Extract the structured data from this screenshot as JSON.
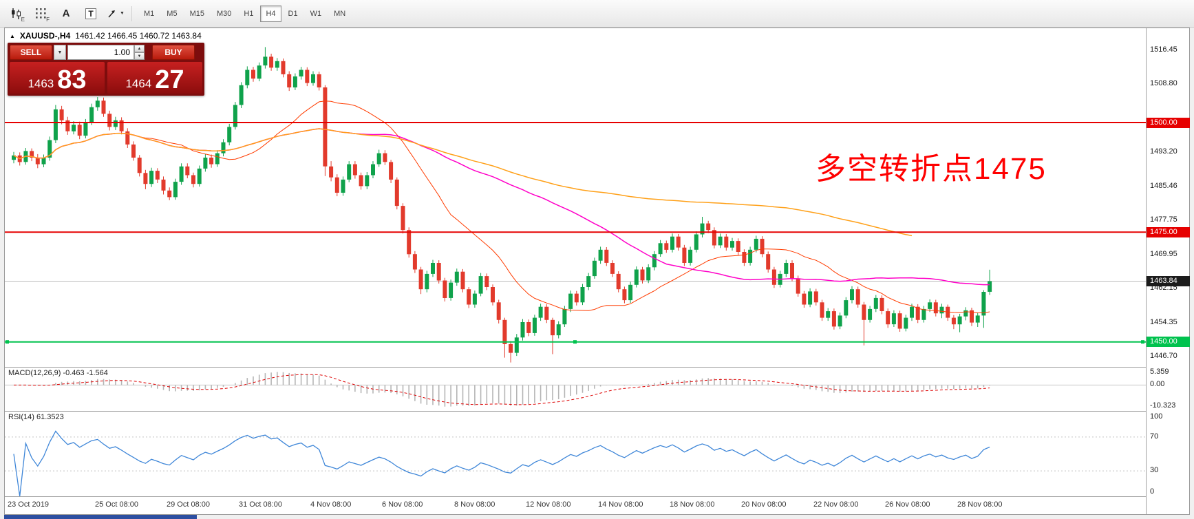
{
  "toolbar": {
    "icons": [
      {
        "name": "candlestick-style-icon",
        "sub": "E"
      },
      {
        "name": "grid-icon",
        "sub": "F"
      },
      {
        "name": "text-tool-icon",
        "label": "A"
      },
      {
        "name": "text-frame-tool-icon",
        "label": "T"
      },
      {
        "name": "cursor-tool-icon"
      }
    ],
    "timeframes": [
      "M1",
      "M5",
      "M15",
      "M30",
      "H1",
      "H4",
      "D1",
      "W1",
      "MN"
    ],
    "active_timeframe": "H4"
  },
  "chart_header": {
    "collapse_icon": "▲",
    "symbol": "XAUUSD-,H4",
    "ohlc": "1461.42 1466.45 1460.72 1463.84"
  },
  "trade_panel": {
    "sell_label": "SELL",
    "buy_label": "BUY",
    "volume": "1.00",
    "sell_price_main": "1463",
    "sell_price_big": "83",
    "buy_price_main": "1464",
    "buy_price_big": "27"
  },
  "annotation": {
    "text": "多空转折点1475",
    "color": "#ff0000"
  },
  "price_axis": {
    "labels": [
      {
        "text": "1516.45",
        "price": 1516.45
      },
      {
        "text": "1508.80",
        "price": 1508.8
      },
      {
        "text": "1493.20",
        "price": 1493.2
      },
      {
        "text": "1485.46",
        "price": 1485.46
      },
      {
        "text": "1477.75",
        "price": 1477.75
      },
      {
        "text": "1469.95",
        "price": 1469.95
      },
      {
        "text": "1462.15",
        "price": 1462.15
      },
      {
        "text": "1454.35",
        "price": 1454.35
      },
      {
        "text": "1446.70",
        "price": 1446.7
      }
    ],
    "badges": [
      {
        "text": "1500.00",
        "price": 1500.0,
        "bg": "#e60000"
      },
      {
        "text": "1475.00",
        "price": 1475.0,
        "bg": "#e60000"
      },
      {
        "text": "1463.84",
        "price": 1463.84,
        "bg": "#1c1c1c"
      },
      {
        "text": "1450.00",
        "price": 1450.0,
        "bg": "#00c24e"
      }
    ]
  },
  "macd_panel": {
    "label": "MACD(12,26,9) -0.463 -1.564",
    "axis_labels": [
      "5.359",
      "0.00",
      "-10.323"
    ]
  },
  "rsi_panel": {
    "label": "RSI(14) 61.3523",
    "axis_labels": [
      "100",
      "70",
      "30",
      "0"
    ],
    "levels": [
      70,
      30
    ]
  },
  "time_axis": [
    {
      "text": "23 Oct 2019",
      "bar": 0
    },
    {
      "text": "25 Oct 08:00",
      "bar": 14
    },
    {
      "text": "29 Oct 08:00",
      "bar": 26
    },
    {
      "text": "31 Oct 08:00",
      "bar": 38
    },
    {
      "text": "4 Nov 08:00",
      "bar": 50
    },
    {
      "text": "6 Nov 08:00",
      "bar": 62
    },
    {
      "text": "8 Nov 08:00",
      "bar": 74
    },
    {
      "text": "12 Nov 08:00",
      "bar": 86
    },
    {
      "text": "14 Nov 08:00",
      "bar": 98
    },
    {
      "text": "18 Nov 08:00",
      "bar": 110
    },
    {
      "text": "20 Nov 08:00",
      "bar": 122
    },
    {
      "text": "22 Nov 08:00",
      "bar": 134
    },
    {
      "text": "26 Nov 08:00",
      "bar": 146
    },
    {
      "text": "28 Nov 08:00",
      "bar": 158
    }
  ],
  "chart_data": {
    "type": "candlestick",
    "symbol": "XAUUSD-",
    "timeframe": "H4",
    "price_min": 1444.3,
    "price_max": 1521.5,
    "bull_color": "#0fa24b",
    "bear_color": "#e23a2c",
    "current_price": 1463.84,
    "hlines": [
      {
        "price": 1500.0,
        "color": "#e60000",
        "width": 2,
        "handles": false
      },
      {
        "price": 1475.0,
        "color": "#e60000",
        "width": 2,
        "handles": false
      },
      {
        "price": 1450.0,
        "color": "#00c24e",
        "width": 2,
        "handles": true
      }
    ],
    "overlays": [
      {
        "name": "ma-fast",
        "period": 22,
        "color": "#ff3c00",
        "width": 1,
        "cut": 0
      },
      {
        "name": "ma-mid",
        "period": 58,
        "color": "#ff00c8",
        "width": 1.5,
        "cut": 0
      },
      {
        "name": "ma-slow",
        "period": 130,
        "color": "#ffa018",
        "width": 1.5,
        "cut": 13
      }
    ],
    "indicators": [
      {
        "name": "MACD",
        "params": [
          12,
          26,
          9
        ],
        "main": -0.463,
        "signal": -1.564
      },
      {
        "name": "RSI",
        "params": [
          14
        ],
        "value": 61.3523
      }
    ],
    "candles": [
      [
        1491.5,
        1493.3,
        1490.7,
        1492.5
      ],
      [
        1492.5,
        1493.2,
        1490.2,
        1491.0
      ],
      [
        1491.0,
        1494.2,
        1490.4,
        1493.5
      ],
      [
        1493.5,
        1494.1,
        1491.2,
        1492.0
      ],
      [
        1492.0,
        1492.8,
        1489.6,
        1490.5
      ],
      [
        1490.5,
        1492.7,
        1489.8,
        1492.0
      ],
      [
        1492.0,
        1496.8,
        1491.3,
        1496.0
      ],
      [
        1496.0,
        1504.0,
        1495.3,
        1503.0
      ],
      [
        1503.0,
        1503.8,
        1499.6,
        1500.5
      ],
      [
        1500.5,
        1501.3,
        1497.2,
        1498.0
      ],
      [
        1498.0,
        1500.3,
        1497.3,
        1499.5
      ],
      [
        1499.5,
        1500.2,
        1496.2,
        1497.0
      ],
      [
        1497.0,
        1500.8,
        1496.4,
        1500.0
      ],
      [
        1500.0,
        1504.3,
        1499.4,
        1503.5
      ],
      [
        1503.5,
        1505.8,
        1502.7,
        1505.0
      ],
      [
        1505.0,
        1505.7,
        1501.3,
        1502.0
      ],
      [
        1502.0,
        1502.7,
        1498.2,
        1499.0
      ],
      [
        1499.0,
        1501.3,
        1498.3,
        1500.5
      ],
      [
        1500.5,
        1501.2,
        1497.3,
        1498.0
      ],
      [
        1498.0,
        1498.7,
        1494.2,
        1495.0
      ],
      [
        1495.0,
        1495.7,
        1491.3,
        1492.0
      ],
      [
        1492.0,
        1492.6,
        1487.7,
        1488.5
      ],
      [
        1488.5,
        1489.2,
        1484.8,
        1486.0
      ],
      [
        1486.0,
        1489.7,
        1485.3,
        1489.0
      ],
      [
        1489.0,
        1489.6,
        1486.2,
        1487.0
      ],
      [
        1487.0,
        1487.7,
        1483.6,
        1484.5
      ],
      [
        1484.5,
        1485.2,
        1482.3,
        1483.0
      ],
      [
        1483.0,
        1487.2,
        1482.4,
        1486.5
      ],
      [
        1486.5,
        1490.7,
        1485.8,
        1490.0
      ],
      [
        1490.0,
        1490.7,
        1487.3,
        1488.0
      ],
      [
        1488.0,
        1488.6,
        1485.2,
        1486.0
      ],
      [
        1486.0,
        1490.2,
        1485.4,
        1489.5
      ],
      [
        1489.5,
        1492.8,
        1488.8,
        1492.0
      ],
      [
        1492.0,
        1492.7,
        1489.7,
        1490.5
      ],
      [
        1490.5,
        1493.7,
        1489.9,
        1493.0
      ],
      [
        1493.0,
        1496.2,
        1492.3,
        1495.5
      ],
      [
        1495.5,
        1499.7,
        1494.8,
        1499.0
      ],
      [
        1499.0,
        1504.7,
        1498.4,
        1504.0
      ],
      [
        1504.0,
        1509.2,
        1503.3,
        1508.5
      ],
      [
        1508.5,
        1512.8,
        1507.8,
        1512.0
      ],
      [
        1512.0,
        1512.7,
        1509.3,
        1510.0
      ],
      [
        1510.0,
        1513.7,
        1509.4,
        1513.0
      ],
      [
        1513.0,
        1517.2,
        1512.3,
        1515.0
      ],
      [
        1515.0,
        1515.7,
        1511.8,
        1512.5
      ],
      [
        1512.5,
        1514.7,
        1511.8,
        1514.0
      ],
      [
        1514.0,
        1514.6,
        1510.3,
        1511.0
      ],
      [
        1511.0,
        1511.7,
        1507.2,
        1508.0
      ],
      [
        1508.0,
        1511.2,
        1507.4,
        1510.5
      ],
      [
        1510.5,
        1512.7,
        1509.8,
        1512.0
      ],
      [
        1512.0,
        1512.6,
        1508.3,
        1509.0
      ],
      [
        1509.0,
        1511.7,
        1508.4,
        1511.0
      ],
      [
        1511.0,
        1511.6,
        1507.3,
        1508.0
      ],
      [
        1508.0,
        1508.5,
        1487.8,
        1490.0
      ],
      [
        1490.0,
        1491.2,
        1486.6,
        1487.5
      ],
      [
        1487.5,
        1488.2,
        1483.2,
        1484.0
      ],
      [
        1484.0,
        1487.7,
        1483.3,
        1487.0
      ],
      [
        1487.0,
        1491.2,
        1486.4,
        1490.5
      ],
      [
        1490.5,
        1491.2,
        1487.2,
        1488.0
      ],
      [
        1488.0,
        1488.6,
        1484.7,
        1485.5
      ],
      [
        1485.5,
        1488.7,
        1484.8,
        1488.0
      ],
      [
        1488.0,
        1491.2,
        1487.3,
        1490.5
      ],
      [
        1490.5,
        1493.8,
        1489.9,
        1493.0
      ],
      [
        1493.0,
        1493.7,
        1490.3,
        1491.0
      ],
      [
        1491.0,
        1491.5,
        1486.2,
        1487.0
      ],
      [
        1487.0,
        1487.5,
        1480.2,
        1481.0
      ],
      [
        1481.0,
        1481.6,
        1474.7,
        1475.5
      ],
      [
        1475.5,
        1476.1,
        1469.2,
        1470.0
      ],
      [
        1470.0,
        1470.7,
        1465.7,
        1466.5
      ],
      [
        1466.5,
        1467.1,
        1460.9,
        1462.0
      ],
      [
        1462.0,
        1466.2,
        1461.3,
        1465.5
      ],
      [
        1465.5,
        1468.7,
        1464.8,
        1468.0
      ],
      [
        1468.0,
        1468.6,
        1463.3,
        1464.0
      ],
      [
        1464.0,
        1464.6,
        1459.2,
        1460.0
      ],
      [
        1460.0,
        1464.2,
        1459.4,
        1463.5
      ],
      [
        1463.5,
        1466.7,
        1462.8,
        1466.0
      ],
      [
        1466.0,
        1466.6,
        1461.3,
        1462.0
      ],
      [
        1462.0,
        1462.5,
        1457.7,
        1458.5
      ],
      [
        1458.5,
        1461.7,
        1457.8,
        1461.0
      ],
      [
        1461.0,
        1465.7,
        1460.4,
        1465.0
      ],
      [
        1465.0,
        1465.6,
        1461.8,
        1462.5
      ],
      [
        1462.5,
        1463.1,
        1458.3,
        1459.0
      ],
      [
        1459.0,
        1459.6,
        1454.2,
        1455.0
      ],
      [
        1455.0,
        1455.5,
        1446.4,
        1449.5
      ],
      [
        1449.5,
        1450.2,
        1445.3,
        1447.5
      ],
      [
        1447.5,
        1451.8,
        1446.8,
        1451.0
      ],
      [
        1451.0,
        1455.2,
        1450.3,
        1454.5
      ],
      [
        1454.5,
        1455.1,
        1451.3,
        1452.0
      ],
      [
        1452.0,
        1456.2,
        1451.4,
        1455.5
      ],
      [
        1455.5,
        1458.7,
        1454.8,
        1458.0
      ],
      [
        1458.0,
        1458.6,
        1454.3,
        1455.0
      ],
      [
        1455.0,
        1455.5,
        1447.2,
        1451.5
      ],
      [
        1451.5,
        1454.7,
        1450.8,
        1454.0
      ],
      [
        1454.0,
        1458.2,
        1453.4,
        1457.5
      ],
      [
        1457.5,
        1461.7,
        1456.8,
        1461.0
      ],
      [
        1461.0,
        1461.6,
        1458.3,
        1459.0
      ],
      [
        1459.0,
        1463.2,
        1458.4,
        1462.5
      ],
      [
        1462.5,
        1465.7,
        1461.8,
        1465.0
      ],
      [
        1465.0,
        1469.2,
        1464.4,
        1468.5
      ],
      [
        1468.5,
        1471.7,
        1467.8,
        1471.0
      ],
      [
        1471.0,
        1471.6,
        1467.3,
        1468.0
      ],
      [
        1468.0,
        1468.6,
        1464.8,
        1465.5
      ],
      [
        1465.5,
        1466.1,
        1461.3,
        1462.0
      ],
      [
        1462.0,
        1462.6,
        1458.8,
        1459.5
      ],
      [
        1459.5,
        1463.7,
        1458.9,
        1463.0
      ],
      [
        1463.0,
        1467.2,
        1462.4,
        1466.5
      ],
      [
        1466.5,
        1467.1,
        1463.3,
        1464.0
      ],
      [
        1464.0,
        1467.7,
        1463.4,
        1467.0
      ],
      [
        1467.0,
        1470.7,
        1466.3,
        1470.0
      ],
      [
        1470.0,
        1473.2,
        1469.4,
        1472.5
      ],
      [
        1472.5,
        1473.1,
        1470.3,
        1471.0
      ],
      [
        1471.0,
        1474.7,
        1470.4,
        1474.0
      ],
      [
        1474.0,
        1474.6,
        1470.8,
        1471.5
      ],
      [
        1471.5,
        1472.1,
        1467.3,
        1468.0
      ],
      [
        1468.0,
        1471.7,
        1467.4,
        1471.0
      ],
      [
        1471.0,
        1475.2,
        1470.4,
        1474.5
      ],
      [
        1474.5,
        1478.5,
        1473.8,
        1477.0
      ],
      [
        1477.0,
        1477.6,
        1474.8,
        1475.5
      ],
      [
        1475.5,
        1476.1,
        1471.3,
        1472.0
      ],
      [
        1472.0,
        1474.7,
        1471.4,
        1474.0
      ],
      [
        1474.0,
        1474.6,
        1470.8,
        1471.5
      ],
      [
        1471.5,
        1473.7,
        1470.8,
        1473.0
      ],
      [
        1473.0,
        1473.6,
        1469.8,
        1470.5
      ],
      [
        1470.5,
        1471.1,
        1467.3,
        1468.0
      ],
      [
        1468.0,
        1471.7,
        1467.4,
        1471.0
      ],
      [
        1471.0,
        1474.2,
        1470.4,
        1473.5
      ],
      [
        1473.5,
        1474.1,
        1469.3,
        1470.0
      ],
      [
        1470.0,
        1470.6,
        1465.8,
        1466.5
      ],
      [
        1466.5,
        1467.1,
        1462.3,
        1463.0
      ],
      [
        1463.0,
        1466.2,
        1462.4,
        1465.5
      ],
      [
        1465.5,
        1468.7,
        1464.8,
        1468.0
      ],
      [
        1468.0,
        1468.6,
        1463.8,
        1464.5
      ],
      [
        1464.5,
        1465.1,
        1460.3,
        1461.0
      ],
      [
        1461.0,
        1461.6,
        1457.8,
        1458.5
      ],
      [
        1458.5,
        1462.2,
        1457.9,
        1461.5
      ],
      [
        1461.5,
        1462.1,
        1458.3,
        1459.0
      ],
      [
        1459.0,
        1459.6,
        1454.8,
        1455.5
      ],
      [
        1455.5,
        1457.7,
        1454.8,
        1457.0
      ],
      [
        1457.0,
        1457.6,
        1452.8,
        1453.5
      ],
      [
        1453.5,
        1456.7,
        1452.9,
        1456.0
      ],
      [
        1456.0,
        1460.2,
        1455.4,
        1459.5
      ],
      [
        1459.5,
        1462.7,
        1458.8,
        1462.0
      ],
      [
        1462.0,
        1462.6,
        1457.8,
        1458.5
      ],
      [
        1458.5,
        1459.1,
        1449.2,
        1455.0
      ],
      [
        1455.0,
        1458.2,
        1454.4,
        1457.5
      ],
      [
        1457.5,
        1460.7,
        1456.8,
        1460.0
      ],
      [
        1460.0,
        1460.6,
        1456.3,
        1457.0
      ],
      [
        1457.0,
        1457.6,
        1453.2,
        1454.0
      ],
      [
        1454.0,
        1457.2,
        1453.4,
        1456.5
      ],
      [
        1456.5,
        1457.1,
        1452.3,
        1453.0
      ],
      [
        1453.0,
        1456.2,
        1452.4,
        1455.5
      ],
      [
        1455.5,
        1458.7,
        1454.8,
        1458.0
      ],
      [
        1458.0,
        1458.6,
        1454.3,
        1455.0
      ],
      [
        1455.0,
        1458.2,
        1454.4,
        1457.5
      ],
      [
        1457.5,
        1459.7,
        1456.8,
        1459.0
      ],
      [
        1459.0,
        1459.6,
        1455.8,
        1456.5
      ],
      [
        1456.5,
        1458.7,
        1455.4,
        1458.0
      ],
      [
        1458.0,
        1458.5,
        1454.8,
        1455.5
      ],
      [
        1455.5,
        1456.1,
        1452.9,
        1454.0
      ],
      [
        1454.0,
        1456.4,
        1452.2,
        1455.8
      ],
      [
        1455.8,
        1457.9,
        1454.9,
        1457.2
      ],
      [
        1457.2,
        1457.8,
        1453.6,
        1454.4
      ],
      [
        1454.4,
        1456.6,
        1453.4,
        1456.0
      ],
      [
        1456.0,
        1461.8,
        1453.2,
        1461.4
      ],
      [
        1461.42,
        1466.45,
        1460.72,
        1463.84
      ]
    ]
  }
}
